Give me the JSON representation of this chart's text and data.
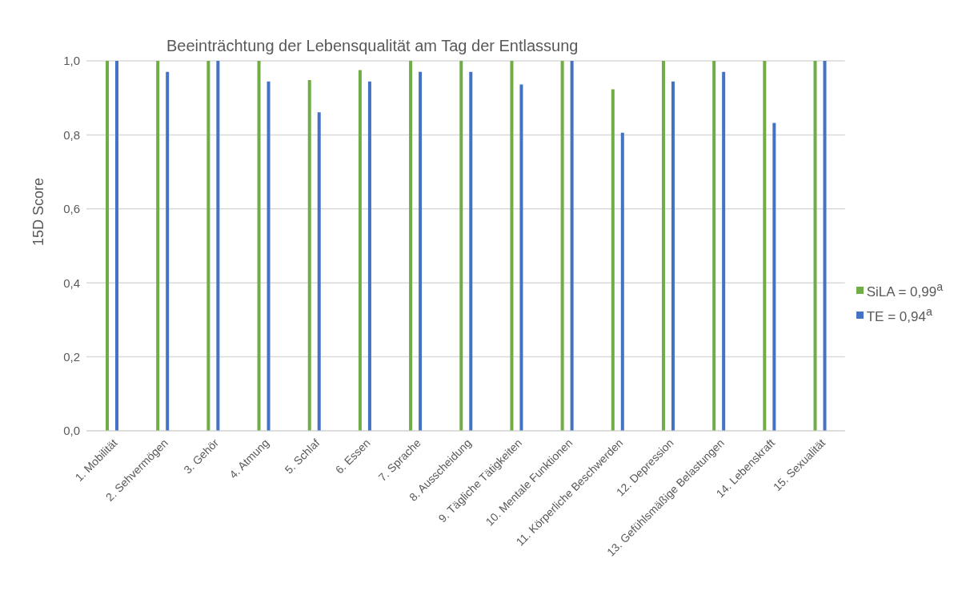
{
  "chart_data": {
    "type": "bar",
    "title": "Beeinträchtung der Lebensqualität am Tag der Entlassung",
    "ylabel": "15D Score",
    "categories": [
      "1. Mobilität",
      "2. Sehvermögen",
      "3. Gehör",
      "4. Atmung",
      "5. Schlaf",
      "6. Essen",
      "7. Sprache",
      "8. Ausscheidung",
      "9. Tägliche Tätigkeiten",
      "10. Mentale Funktionen",
      "11. Körperliche Beschwerden",
      "12. Depression",
      "13. Gefühlsmäßige Belastungen",
      "14. Lebenskraft",
      "15. Sexualität"
    ],
    "series": [
      {
        "name": "SiLA = 0,99$^{a}$",
        "color": "#70ad47",
        "values": [
          1,
          1,
          1,
          1,
          0.948,
          0.975,
          1,
          1,
          1,
          1,
          0.923,
          1,
          1,
          1,
          1
        ]
      },
      {
        "name": "TE = 0,94$^{a}$",
        "color": "#4472c4",
        "values": [
          1,
          0.97,
          1,
          0.944,
          0.861,
          0.944,
          0.97,
          0.97,
          0.936,
          1,
          0.806,
          0.944,
          0.97,
          0.832,
          1
        ]
      }
    ],
    "ylim": [
      0,
      1
    ],
    "yticks": [
      {
        "value": 0,
        "label": "0,0"
      },
      {
        "value": 0.2,
        "label": "0,2"
      },
      {
        "value": 0.4,
        "label": "0,4"
      },
      {
        "value": 0.6,
        "label": "0,6"
      },
      {
        "value": 0.8,
        "label": "0,8"
      },
      {
        "value": 1,
        "label": "1,0"
      }
    ],
    "grid": "y",
    "legend": "right"
  }
}
